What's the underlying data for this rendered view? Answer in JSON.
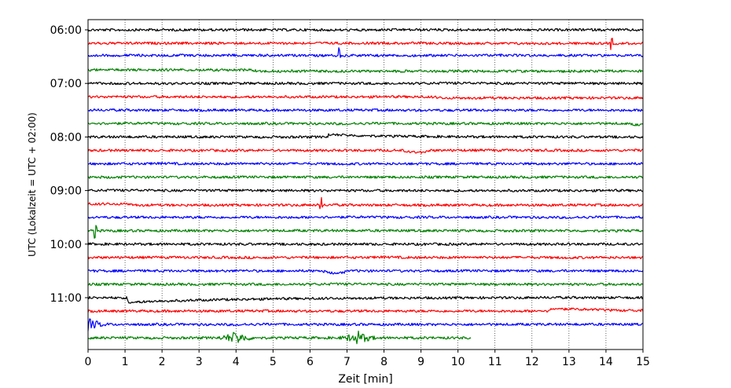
{
  "chart_data": {
    "type": "line",
    "title": "",
    "xlabel": "Zeit  [min]",
    "ylabel": "UTC (Lokalzeit = UTC + 02:00)",
    "xlim": [
      0,
      15
    ],
    "x_ticks": [
      "0",
      "1",
      "2",
      "3",
      "4",
      "5",
      "6",
      "7",
      "8",
      "9",
      "10",
      "11",
      "12",
      "13",
      "14",
      "15"
    ],
    "y_ticks": [
      "06:00",
      "07:00",
      "08:00",
      "09:00",
      "10:00",
      "11:00"
    ],
    "grid": "vertical-dotted",
    "trace_colors": [
      "#000000",
      "#ff0000",
      "#0000ff",
      "#008000"
    ],
    "traces_per_hour": 4,
    "trace_count": 24,
    "last_trace_end_min": 10.35,
    "events": [
      {
        "trace": 1,
        "at_min": 14.15,
        "type": "spike"
      },
      {
        "trace": 2,
        "at_min": 6.8,
        "type": "spike"
      },
      {
        "trace": 2,
        "at_min": 0.1,
        "type": "step"
      },
      {
        "trace": 3,
        "at_min": 4.4,
        "type": "step"
      },
      {
        "trace": 5,
        "at_min": 9.3,
        "type": "step"
      },
      {
        "trace": 7,
        "at_min": 14.5,
        "type": "step"
      },
      {
        "trace": 8,
        "at_min": 6.5,
        "type": "bump"
      },
      {
        "trace": 9,
        "at_min": 8.9,
        "type": "dip"
      },
      {
        "trace": 13,
        "at_min": 1.1,
        "type": "step"
      },
      {
        "trace": 13,
        "at_min": 6.3,
        "type": "spike"
      },
      {
        "trace": 15,
        "at_min": 0.2,
        "type": "spike"
      },
      {
        "trace": 18,
        "at_min": 6.7,
        "type": "dip"
      },
      {
        "trace": 20,
        "at_min": 1.05,
        "type": "drop"
      },
      {
        "trace": 21,
        "at_min": 12.5,
        "type": "bump"
      },
      {
        "trace": 22,
        "at_min": 0.0,
        "type": "burst"
      },
      {
        "trace": 23,
        "at_min": 4.0,
        "type": "burst"
      },
      {
        "trace": 23,
        "at_min": 7.3,
        "type": "burst"
      }
    ]
  }
}
